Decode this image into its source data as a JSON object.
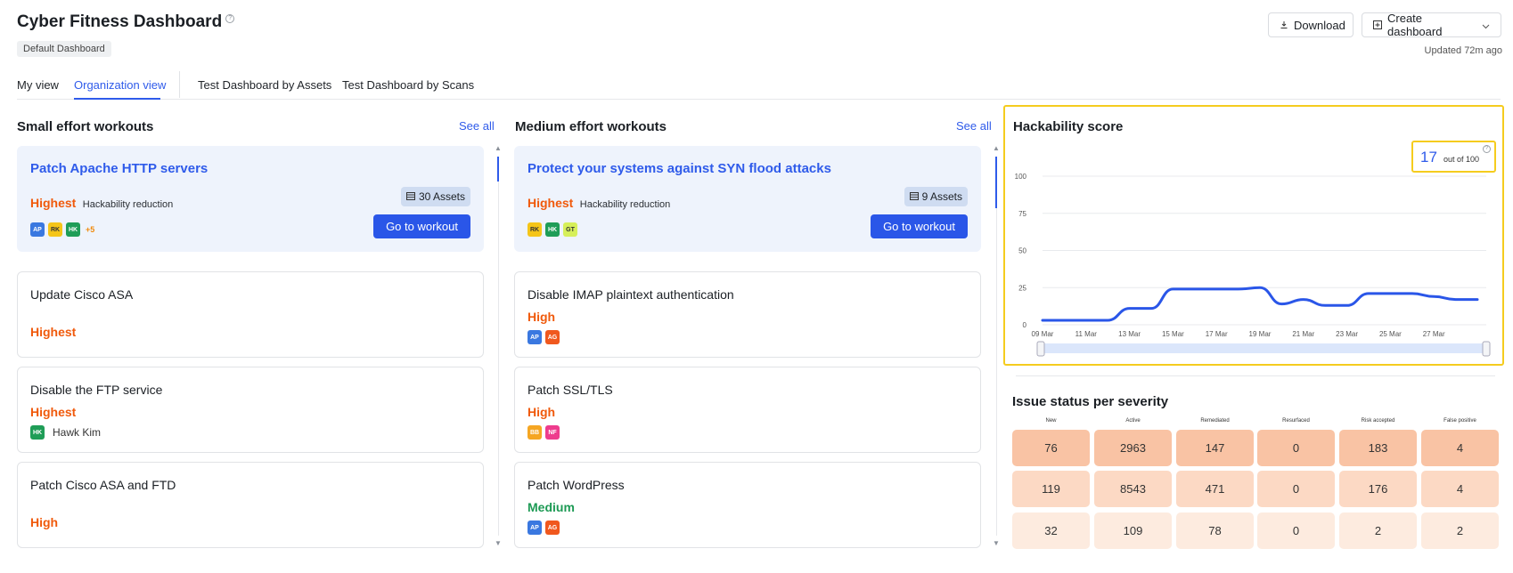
{
  "header": {
    "title": "Cyber Fitness Dashboard",
    "badge": "Default Dashboard",
    "download_label": "Download",
    "create_label": "Create dashboard",
    "updated": "Updated 72m ago"
  },
  "tabs": [
    "My view",
    "Organization view",
    "Test Dashboard by Assets",
    "Test Dashboard by Scans"
  ],
  "small": {
    "title": "Small effort workouts",
    "see_all": "See all",
    "featured": {
      "name": "Patch Apache HTTP servers",
      "priority": "Highest",
      "reduction": "Hackability reduction",
      "assets": "30 Assets",
      "button": "Go to workout",
      "avatars": [
        {
          "label": "AP",
          "color": "#3a78e0"
        },
        {
          "label": "RK",
          "color": "#f5c518"
        },
        {
          "label": "HK",
          "color": "#1f9d57"
        }
      ],
      "more": "+5"
    },
    "cards": [
      {
        "name": "Update Cisco ASA",
        "priority": "Highest"
      },
      {
        "name": "Disable the FTP service",
        "priority": "Highest",
        "owner_avatar": "HK",
        "owner_name": "Hawk Kim"
      },
      {
        "name": "Patch Cisco ASA and FTD",
        "priority": "High"
      }
    ]
  },
  "medium": {
    "title": "Medium effort workouts",
    "see_all": "See all",
    "featured": {
      "name": "Protect your systems against SYN flood attacks",
      "priority": "Highest",
      "reduction": "Hackability reduction",
      "assets": "9 Assets",
      "button": "Go to workout",
      "avatars": [
        {
          "label": "RK",
          "color": "#f5c518"
        },
        {
          "label": "HK",
          "color": "#1f9d57"
        },
        {
          "label": "GT",
          "color": "#d6ef5a"
        }
      ]
    },
    "cards": [
      {
        "name": "Disable IMAP plaintext authentication",
        "priority": "High",
        "avatars": [
          {
            "label": "AP",
            "color": "#3a78e0"
          },
          {
            "label": "AG",
            "color": "#f0581e"
          }
        ]
      },
      {
        "name": "Patch SSL/TLS",
        "priority": "High",
        "avatars": [
          {
            "label": "BB",
            "color": "#f5a623"
          },
          {
            "label": "NF",
            "color": "#ee3c8d"
          }
        ]
      },
      {
        "name": "Patch WordPress",
        "priority": "Medium",
        "avatars": [
          {
            "label": "AP",
            "color": "#3a78e0"
          },
          {
            "label": "AG",
            "color": "#f0581e"
          }
        ]
      }
    ]
  },
  "hackability": {
    "title": "Hackability score",
    "score": "17",
    "score_suffix": "out of 100"
  },
  "chart_data": {
    "type": "line",
    "yticks": [
      "100",
      "75",
      "50",
      "25",
      "0"
    ],
    "ylim": [
      0,
      100
    ],
    "xticks": [
      "09 Mar",
      "11 Mar",
      "13 Mar",
      "15 Mar",
      "17 Mar",
      "19 Mar",
      "21 Mar",
      "23 Mar",
      "25 Mar",
      "27 Mar"
    ],
    "x": [
      "09 Mar",
      "10 Mar",
      "11 Mar",
      "12 Mar",
      "13 Mar",
      "14 Mar",
      "15 Mar",
      "16 Mar",
      "17 Mar",
      "18 Mar",
      "19 Mar",
      "20 Mar",
      "21 Mar",
      "22 Mar",
      "23 Mar",
      "24 Mar",
      "25 Mar",
      "26 Mar",
      "27 Mar",
      "28 Mar",
      "29 Mar"
    ],
    "series": [
      {
        "values": [
          3,
          3,
          3,
          3,
          11,
          11,
          24,
          24,
          24,
          24,
          25,
          14,
          17,
          13,
          13,
          21,
          21,
          21,
          19,
          17,
          17
        ],
        "color": "#2a56e8"
      }
    ],
    "grid": true
  },
  "issues": {
    "title": "Issue status per severity",
    "headers": [
      "New",
      "Active",
      "Remediated",
      "Resurfaced",
      "Risk accepted",
      "False positive"
    ],
    "rows": [
      [
        "76",
        "2963",
        "147",
        "0",
        "183",
        "4"
      ],
      [
        "119",
        "8543",
        "471",
        "0",
        "176",
        "4"
      ],
      [
        "32",
        "109",
        "78",
        "0",
        "2",
        "2"
      ]
    ],
    "row_colors": [
      "#f9c3a4",
      "#fcd9c4",
      "#fdebdf"
    ]
  }
}
